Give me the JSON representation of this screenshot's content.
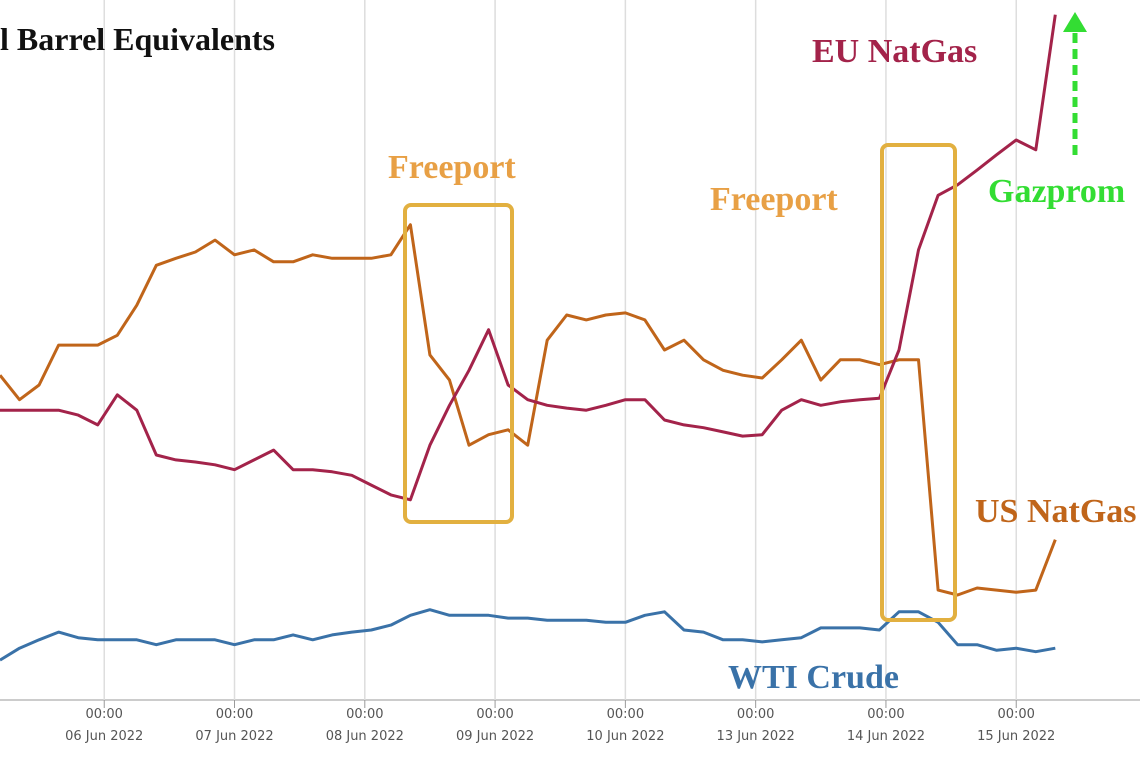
{
  "chart_data": {
    "type": "line",
    "title": "l Barrel Equivalents",
    "x": [
      0.2,
      0.35,
      0.5,
      0.65,
      0.8,
      0.95,
      1.1,
      1.25,
      1.4,
      1.55,
      1.7,
      1.85,
      2,
      2.15,
      2.3,
      2.45,
      2.6,
      2.75,
      2.9,
      3.05,
      3.2,
      3.35,
      3.5,
      3.65,
      3.8,
      3.95,
      4.1,
      4.25,
      4.4,
      4.55,
      4.7,
      4.85,
      5,
      5.15,
      5.3,
      5.45,
      5.6,
      5.75,
      5.9,
      6.05,
      6.2,
      6.35,
      6.5,
      6.65,
      6.8,
      6.95,
      7.1,
      7.25,
      7.4,
      7.55,
      7.7,
      7.85,
      8,
      8.15,
      8.3
    ],
    "series": [
      {
        "name": "US NatGas",
        "color": "#c0651a",
        "values": [
          46.4,
          42.9,
          45,
          50.7,
          50.7,
          50.7,
          52.1,
          56.4,
          62.1,
          63.1,
          64,
          65.7,
          63.6,
          64.3,
          62.6,
          62.6,
          63.6,
          63.1,
          63.1,
          63.1,
          63.6,
          67.9,
          49.3,
          45.7,
          36.4,
          37.9,
          38.6,
          36.4,
          51.4,
          55,
          54.3,
          55,
          55.3,
          54.3,
          50,
          51.4,
          48.6,
          47.1,
          46.4,
          46,
          48.6,
          51.4,
          45.7,
          48.6,
          48.6,
          47.9,
          48.6,
          48.6,
          15.7,
          15,
          16,
          15.7,
          15.4,
          15.7,
          22.9
        ]
      },
      {
        "name": "EU NatGas",
        "color": "#a3234a",
        "values": [
          41.4,
          41.4,
          41.4,
          41.4,
          40.7,
          39.3,
          43.6,
          41.4,
          35,
          34.3,
          34,
          33.6,
          32.9,
          34.3,
          35.7,
          32.9,
          32.9,
          32.6,
          32.1,
          30.7,
          29.3,
          28.6,
          36.4,
          42.1,
          47.1,
          52.9,
          45,
          42.9,
          42.1,
          41.7,
          41.4,
          42.1,
          42.9,
          42.9,
          40,
          39.3,
          38.9,
          38.3,
          37.7,
          37.9,
          41.4,
          42.9,
          42.1,
          42.6,
          42.9,
          43.1,
          50,
          64.3,
          72.1,
          73.6,
          75.7,
          77.9,
          80,
          78.6,
          97.9
        ]
      },
      {
        "name": "WTI Crude",
        "color": "#3a72a8",
        "values": [
          5.7,
          7.4,
          8.6,
          9.7,
          8.9,
          8.6,
          8.6,
          8.6,
          7.9,
          8.6,
          8.6,
          8.6,
          7.9,
          8.6,
          8.6,
          9.3,
          8.6,
          9.3,
          9.7,
          10,
          10.7,
          12.1,
          12.9,
          12.1,
          12.1,
          12.1,
          11.7,
          11.7,
          11.4,
          11.4,
          11.4,
          11.1,
          11.1,
          12.1,
          12.6,
          10,
          9.7,
          8.6,
          8.6,
          8.3,
          8.6,
          8.9,
          10.3,
          10.3,
          10.3,
          10,
          12.6,
          12.6,
          11.1,
          7.9,
          7.9,
          7.1,
          7.4,
          6.9,
          7.4
        ]
      }
    ],
    "xlim": [
      0.2,
      8.95
    ],
    "ylim": [
      0,
      100
    ],
    "xtick_time": "00:00",
    "xticks": [
      {
        "value": 1,
        "label": "06 Jun 2022"
      },
      {
        "value": 2,
        "label": "07 Jun 2022"
      },
      {
        "value": 3,
        "label": "08 Jun 2022"
      },
      {
        "value": 4,
        "label": "09 Jun 2022"
      },
      {
        "value": 5,
        "label": "10 Jun 2022"
      },
      {
        "value": 6,
        "label": "13 Jun 2022"
      },
      {
        "value": 7,
        "label": "14 Jun 2022"
      },
      {
        "value": 8,
        "label": "15 Jun 2022"
      }
    ],
    "grid": true,
    "annotations": [
      {
        "text": "Freeport",
        "color": "#e8a045"
      },
      {
        "text": "Freeport",
        "color": "#e8a045"
      },
      {
        "text": "Gazprom",
        "color": "#33dd33"
      }
    ]
  }
}
